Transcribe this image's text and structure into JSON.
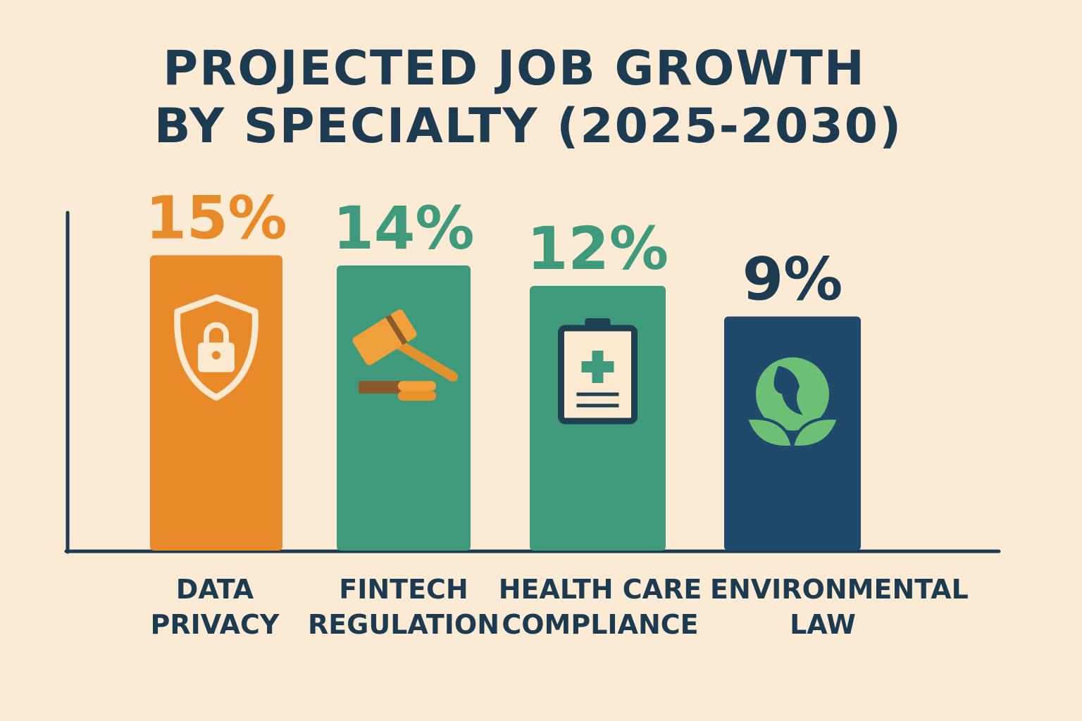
{
  "chart_data": {
    "type": "bar",
    "title_lines": [
      "PROJECTED JOB GROWTH",
      "BY SPECIALTY (2025-2030)"
    ],
    "categories": [
      [
        "DATA",
        "PRIVACY"
      ],
      [
        "FINTECH",
        "REGULATION"
      ],
      [
        "HEALTH CARE",
        "COMPLIANCE"
      ],
      [
        "ENVIRONMENTAL",
        "LAW"
      ]
    ],
    "values": [
      15,
      14,
      12,
      9
    ],
    "value_labels": [
      "15%",
      "14%",
      "12%",
      "9%"
    ],
    "unit": "%",
    "icons": [
      "shield-lock-icon",
      "gavel-coins-icon",
      "clipboard-medical-icon",
      "globe-leaves-icon"
    ],
    "bar_colors": [
      "#e98a2a",
      "#3e9a7b",
      "#3e9a7b",
      "#1f4a6b"
    ],
    "label_colors": [
      "#e98a2a",
      "#3e9a7b",
      "#3e9a7b",
      "#1c3a50"
    ],
    "grid": false,
    "legend": "none"
  }
}
